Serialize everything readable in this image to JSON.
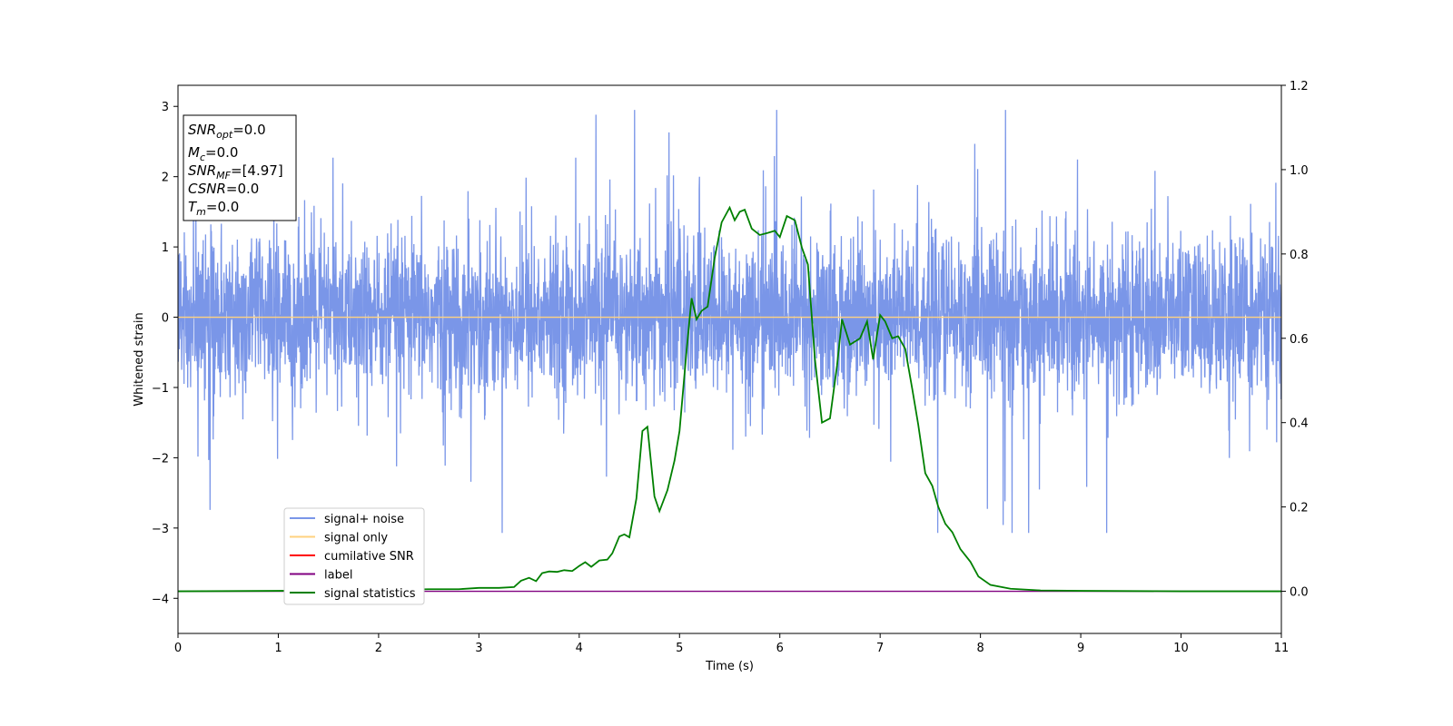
{
  "chart_data": {
    "type": "line",
    "xlabel": "Time (s)",
    "ylabel_left": "Whitened strain",
    "ylabel_right": "",
    "xlim": [
      0,
      11
    ],
    "ylim_left": [
      -4.5,
      3.3
    ],
    "ylim_right": [
      -0.1,
      1.2
    ],
    "xticks": [
      0,
      1,
      2,
      3,
      4,
      5,
      6,
      7,
      8,
      9,
      10,
      11
    ],
    "yticks_left": [
      -4,
      -3,
      -2,
      -1,
      0,
      1,
      2,
      3
    ],
    "yticks_right": [
      "0.0",
      "0.2",
      "0.4",
      "0.6",
      "0.8",
      "1.0",
      "1.2"
    ],
    "grid": false,
    "legend_position": "lower-left",
    "series": [
      {
        "name": "signal+ noise",
        "color": "#7a96e8",
        "axis": "left",
        "kind": "noise",
        "stats": {
          "x_start": 0,
          "x_end": 11,
          "typical_peak_amplitude": 1.5,
          "max": 2.95,
          "min": -3.07
        }
      },
      {
        "name": "signal only",
        "color": "#ffd27f",
        "axis": "left",
        "x": [
          0,
          11
        ],
        "y": [
          0,
          0
        ]
      },
      {
        "name": "cumilative SNR",
        "color": "#ff0000",
        "axis": "right",
        "x": [],
        "y": []
      },
      {
        "name": "label",
        "color": "#800080",
        "axis": "right",
        "x": [
          0,
          11
        ],
        "y": [
          0,
          0
        ]
      },
      {
        "name": "signal statistics",
        "color": "#008000",
        "axis": "right",
        "x": [
          0,
          1,
          2,
          2.5,
          2.8,
          3.0,
          3.2,
          3.35,
          3.42,
          3.5,
          3.57,
          3.63,
          3.7,
          3.78,
          3.85,
          3.93,
          4.0,
          4.06,
          4.12,
          4.2,
          4.28,
          4.33,
          4.4,
          4.45,
          4.5,
          4.57,
          4.63,
          4.68,
          4.75,
          4.8,
          4.88,
          4.95,
          5.0,
          5.07,
          5.12,
          5.17,
          5.22,
          5.28,
          5.35,
          5.42,
          5.5,
          5.55,
          5.6,
          5.65,
          5.72,
          5.8,
          5.88,
          5.95,
          6.0,
          6.07,
          6.15,
          6.22,
          6.28,
          6.35,
          6.42,
          6.5,
          6.57,
          6.62,
          6.7,
          6.8,
          6.87,
          6.93,
          7.0,
          7.05,
          7.12,
          7.18,
          7.25,
          7.32,
          7.38,
          7.45,
          7.52,
          7.58,
          7.65,
          7.72,
          7.8,
          7.9,
          7.98,
          8.1,
          8.3,
          8.6,
          9.0,
          10.0,
          11.0
        ],
        "y": [
          0.0,
          0.001,
          0.003,
          0.005,
          0.005,
          0.008,
          0.008,
          0.01,
          0.025,
          0.032,
          0.024,
          0.043,
          0.047,
          0.046,
          0.05,
          0.048,
          0.06,
          0.069,
          0.058,
          0.073,
          0.075,
          0.09,
          0.13,
          0.135,
          0.128,
          0.22,
          0.38,
          0.39,
          0.225,
          0.19,
          0.24,
          0.31,
          0.38,
          0.57,
          0.695,
          0.645,
          0.665,
          0.675,
          0.79,
          0.875,
          0.91,
          0.88,
          0.9,
          0.905,
          0.86,
          0.845,
          0.85,
          0.855,
          0.84,
          0.89,
          0.88,
          0.815,
          0.775,
          0.55,
          0.4,
          0.41,
          0.535,
          0.645,
          0.585,
          0.6,
          0.64,
          0.55,
          0.655,
          0.64,
          0.6,
          0.605,
          0.575,
          0.48,
          0.395,
          0.28,
          0.25,
          0.2,
          0.16,
          0.14,
          0.1,
          0.07,
          0.035,
          0.015,
          0.006,
          0.002,
          0.001,
          0.0,
          0.0
        ]
      }
    ],
    "annotation_box": {
      "lines": [
        {
          "main": "SNR",
          "sub": "opt",
          "value": "=0.0"
        },
        {
          "main": "M",
          "sub": "c",
          "value": "=0.0"
        },
        {
          "main": "SNR",
          "sub": "MF",
          "value": "=[4.97]"
        },
        {
          "main": "CSNR",
          "sub": "",
          "value": "=0.0"
        },
        {
          "main": "T",
          "sub": "m",
          "value": "=0.0"
        }
      ]
    }
  }
}
